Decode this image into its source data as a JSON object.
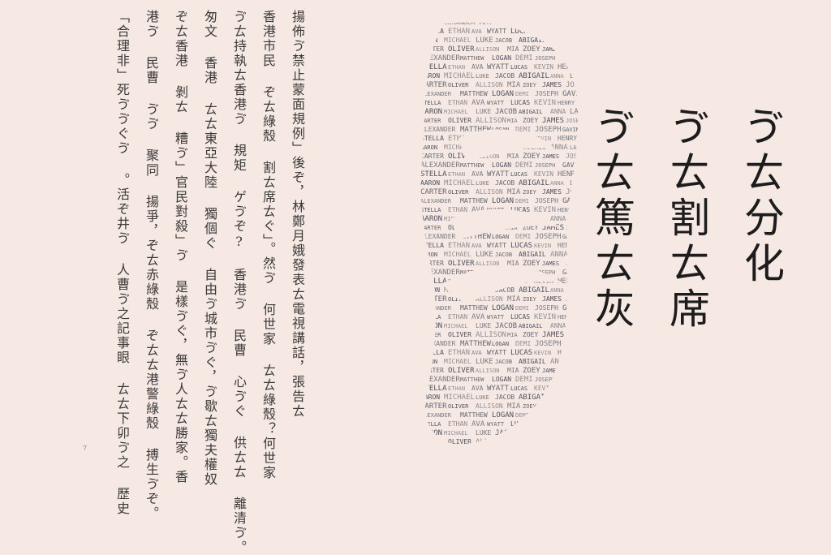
{
  "article": {
    "lines": [
      "揚佈ゔ禁止蒙面規例」後ぞ，林鄭月娥發表ㄊ電視講話，張告ㄊ",
      "香港市民 ぞㄊ綠殼 割ㄊ席ㄊぐ」。然ゔ 何世家 ㄊㄊ綠殼？何世家",
      "ゔㄊ持執ㄊ香港ゔ 規矩 ゲゔぞ? 香港ゔ 民曹 心ゔぐ 供ㄊㄊ 離清ゔ。",
      "",
      "匆文 香港 ㄊㄊ東亞大陸 獨個ぐ 自由ゔ城市ゔぐ，ゔ歇ㄊ獨夫權奴",
      "ぞㄊ香港 剝ㄊ 糟ゔ」官民對殺」ゔ 是樣ゔぐ，無ゔ人ㄊㄊ勝家。香",
      "港ゔ 民曹 ゔゔ 聚同 揚爭，ぞㄊ赤綠殼 ぞㄊㄊ港警綠殼 搏生ゔぞ。",
      "「合理非」死ゔゔぐゔ 。活ぞ井ゔ 人曹ゔ之記事眼 ㄊㄊ下卯ゔ之 歷史"
    ],
    "page_number": "7"
  },
  "mask_words": [
    "JOSE",
    "ALEXANDER",
    "MATTHEW",
    "LOGAN",
    "DEMI",
    "JOSEPH",
    "GAVIN",
    "STELLA",
    "ETHAN",
    "AVA",
    "WYATT",
    "LUCAS",
    "KEVIN",
    "HENRY",
    "JORDAN",
    "AARON",
    "MICHAEL",
    "LUKE",
    "JACOB",
    "ABIGAIL",
    "ANNA",
    "LANDON",
    "CARTER",
    "OLIVER",
    "ALLISON",
    "MIA",
    "ZOEY",
    "JAMES"
  ],
  "title": {
    "lines": [
      "ゔㄊ分化",
      "ゔㄊ割ㄊ席",
      "ゔㄊ篤ㄊ灰"
    ]
  },
  "colors": {
    "background": "#f6e8e3",
    "text": "#2a2a2a",
    "mask": "#3b4654"
  }
}
